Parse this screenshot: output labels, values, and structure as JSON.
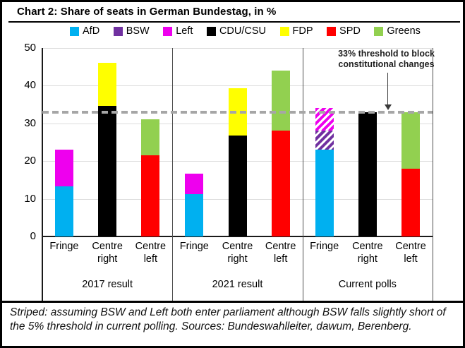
{
  "title": "Chart 2: Share of seats in German Bundestag, in %",
  "annotation": {
    "line1": "33% threshold to block",
    "line2": "constitutional changes"
  },
  "footnote": "Striped: assuming BSW and Left both enter parliament although BSW falls slightly short of the 5% threshold in current polling. Sources: Bundeswahlleiter, dawum, Berenberg.",
  "chart_data": {
    "type": "bar",
    "stacked": true,
    "ylim": [
      0,
      50
    ],
    "y_ticks": [
      50,
      40,
      30,
      20,
      10,
      0
    ],
    "grid": "horizontal",
    "legend_position": "top",
    "legend": [
      {
        "label": "AfD",
        "color": "#00B0F0"
      },
      {
        "label": "BSW",
        "color": "#7030A0"
      },
      {
        "label": "Left",
        "color": "#EE00EE"
      },
      {
        "label": "CDU/CSU",
        "color": "#000000"
      },
      {
        "label": "FDP",
        "color": "#FFFF00"
      },
      {
        "label": "SPD",
        "color": "#FF0000"
      },
      {
        "label": "Greens",
        "color": "#92D050"
      }
    ],
    "colors": {
      "AfD": "#00B0F0",
      "BSW": "#7030A0",
      "Left": "#EE00EE",
      "CDU/CSU": "#000000",
      "FDP": "#FFFF00",
      "SPD": "#FF0000",
      "Greens": "#92D050"
    },
    "threshold_line": {
      "value": 33,
      "style": "dashed",
      "color": "#A6A6A6"
    },
    "groups": [
      {
        "label": "2017 result",
        "bars": [
          {
            "category": "Fringe",
            "segments": [
              {
                "party": "AfD",
                "value": 13.3,
                "striped": false
              },
              {
                "party": "Left",
                "value": 9.7,
                "striped": false
              }
            ]
          },
          {
            "category": "Centre right",
            "segments": [
              {
                "party": "CDU/CSU",
                "value": 34.7,
                "striped": false
              },
              {
                "party": "FDP",
                "value": 11.3,
                "striped": false
              }
            ]
          },
          {
            "category": "Centre left",
            "segments": [
              {
                "party": "SPD",
                "value": 21.6,
                "striped": false
              },
              {
                "party": "Greens",
                "value": 9.5,
                "striped": false
              }
            ]
          }
        ]
      },
      {
        "label": "2021 result",
        "bars": [
          {
            "category": "Fringe",
            "segments": [
              {
                "party": "AfD",
                "value": 11.3,
                "striped": false
              },
              {
                "party": "Left",
                "value": 5.3,
                "striped": false
              }
            ]
          },
          {
            "category": "Centre right",
            "segments": [
              {
                "party": "CDU/CSU",
                "value": 26.8,
                "striped": false
              },
              {
                "party": "FDP",
                "value": 12.5,
                "striped": false
              }
            ]
          },
          {
            "category": "Centre left",
            "segments": [
              {
                "party": "SPD",
                "value": 28.0,
                "striped": false
              },
              {
                "party": "Greens",
                "value": 16.1,
                "striped": false
              }
            ]
          }
        ]
      },
      {
        "label": "Current polls",
        "bars": [
          {
            "category": "Fringe",
            "segments": [
              {
                "party": "AfD",
                "value": 23,
                "striped": false
              },
              {
                "party": "BSW",
                "value": 5,
                "striped": true
              },
              {
                "party": "Left",
                "value": 6,
                "striped": true
              }
            ]
          },
          {
            "category": "Centre right",
            "segments": [
              {
                "party": "CDU/CSU",
                "value": 33,
                "striped": false
              }
            ]
          },
          {
            "category": "Centre left",
            "segments": [
              {
                "party": "SPD",
                "value": 18,
                "striped": false
              },
              {
                "party": "Greens",
                "value": 15,
                "striped": false
              }
            ]
          }
        ]
      }
    ]
  }
}
